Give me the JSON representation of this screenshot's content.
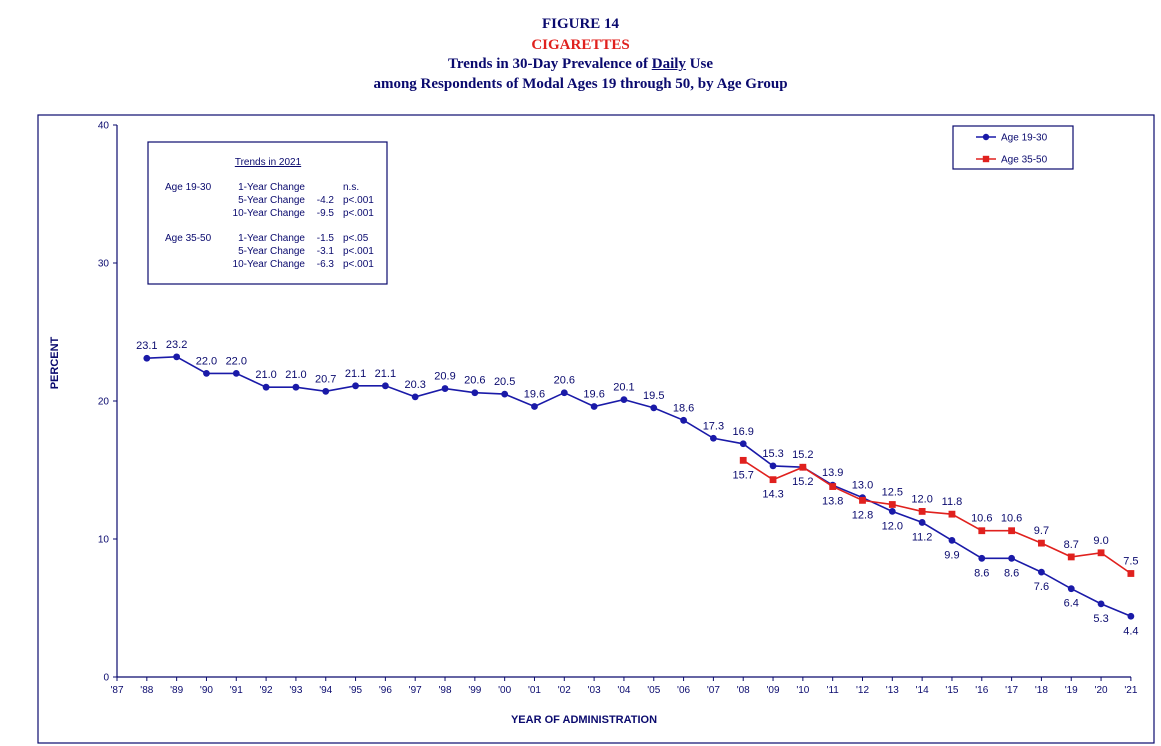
{
  "header": {
    "figure": "FIGURE 14",
    "subject": "CIGARETTES",
    "line1_pre": "Trends in 30-Day Prevalence of ",
    "line1_u": "Daily",
    "line1_post": " Use",
    "line2": "among Respondents of Modal Ages 19 through 50, by Age Group"
  },
  "colors": {
    "navy": "#0a0a6e",
    "series1": "#1a1aa8",
    "series2": "#e0211e"
  },
  "trend_box": {
    "title": "Trends in 2021",
    "rows": [
      {
        "group": "Age 19-30",
        "label": "1-Year Change",
        "value": "",
        "sig": "n.s."
      },
      {
        "group": "",
        "label": "5-Year Change",
        "value": "-4.2",
        "sig": "p<.001"
      },
      {
        "group": "",
        "label": "10-Year Change",
        "value": "-9.5",
        "sig": "p<.001"
      },
      {
        "group": "Age 35-50",
        "label": "1-Year Change",
        "value": "-1.5",
        "sig": "p<.05"
      },
      {
        "group": "",
        "label": "5-Year Change",
        "value": "-3.1",
        "sig": "p<.001"
      },
      {
        "group": "",
        "label": "10-Year Change",
        "value": "-6.3",
        "sig": "p<.001"
      }
    ]
  },
  "chart_data": {
    "type": "line",
    "title": "",
    "xlabel": "YEAR OF ADMINISTRATION",
    "ylabel": "PERCENT",
    "ylim": [
      0,
      40
    ],
    "yticks": [
      0,
      10,
      20,
      30,
      40
    ],
    "grid": false,
    "legend_position": "top-right",
    "x": [
      "'87",
      "'88",
      "'89",
      "'90",
      "'91",
      "'92",
      "'93",
      "'94",
      "'95",
      "'96",
      "'97",
      "'98",
      "'99",
      "'00",
      "'01",
      "'02",
      "'03",
      "'04",
      "'05",
      "'06",
      "'07",
      "'08",
      "'09",
      "'10",
      "'11",
      "'12",
      "'13",
      "'14",
      "'15",
      "'16",
      "'17",
      "'18",
      "'19",
      "'20",
      "'21"
    ],
    "series": [
      {
        "name": "Age 19-30",
        "values": [
          null,
          23.1,
          23.2,
          22.0,
          22.0,
          21.0,
          21.0,
          20.7,
          21.1,
          21.1,
          20.3,
          20.9,
          20.6,
          20.5,
          19.6,
          20.6,
          19.6,
          20.1,
          19.5,
          18.6,
          17.3,
          16.9,
          15.3,
          15.2,
          13.9,
          13.0,
          12.0,
          11.2,
          9.9,
          8.6,
          8.6,
          7.6,
          6.4,
          5.3,
          4.4
        ],
        "labels": [
          "",
          "23.1",
          "23.2",
          "22.0",
          "22.0",
          "21.0",
          "21.0",
          "20.7",
          "21.1",
          "21.1",
          "20.3",
          "20.9",
          "20.6",
          "20.5",
          "19.6",
          "20.6",
          "19.6",
          "20.1",
          "19.5",
          "18.6",
          "17.3",
          "16.9",
          "15.3",
          "15.2",
          "13.9",
          "13.0",
          "12.0",
          "11.2",
          "9.9",
          "8.6",
          "8.6",
          "7.6",
          "6.4",
          "5.3",
          "4.4"
        ]
      },
      {
        "name": "Age 35-50",
        "values": [
          null,
          null,
          null,
          null,
          null,
          null,
          null,
          null,
          null,
          null,
          null,
          null,
          null,
          null,
          null,
          null,
          null,
          null,
          null,
          null,
          null,
          15.7,
          14.3,
          15.2,
          13.8,
          12.8,
          12.5,
          12.0,
          11.8,
          10.6,
          10.6,
          9.7,
          8.7,
          9.0,
          7.5
        ],
        "labels": [
          "",
          "",
          "",
          "",
          "",
          "",
          "",
          "",
          "",
          "",
          "",
          "",
          "",
          "",
          "",
          "",
          "",
          "",
          "",
          "",
          "",
          "15.7",
          "14.3",
          "15.2",
          "13.8",
          "12.8",
          "12.5",
          "12.0",
          "11.8",
          "10.6",
          "10.6",
          "9.7",
          "8.7",
          "9.0",
          "7.5"
        ]
      }
    ]
  }
}
